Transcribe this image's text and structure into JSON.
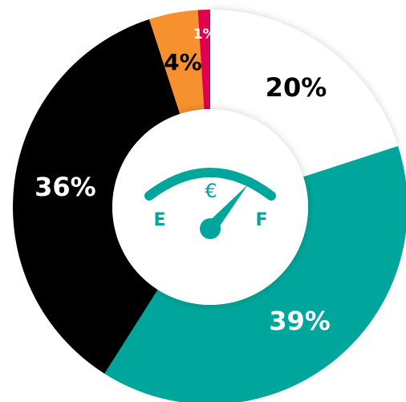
{
  "chart_data": {
    "type": "donut",
    "categories": [
      null,
      null,
      null,
      null,
      null
    ],
    "values": [
      20,
      39,
      36,
      4,
      1
    ],
    "value_labels": [
      "20%",
      "39%",
      "36%",
      "4%",
      "1%"
    ],
    "colors": [
      "#ffffff",
      "#00a59b",
      "#000000",
      "#f7902f",
      "#e0004d"
    ],
    "annotations": [
      "€",
      "E",
      "F"
    ]
  }
}
